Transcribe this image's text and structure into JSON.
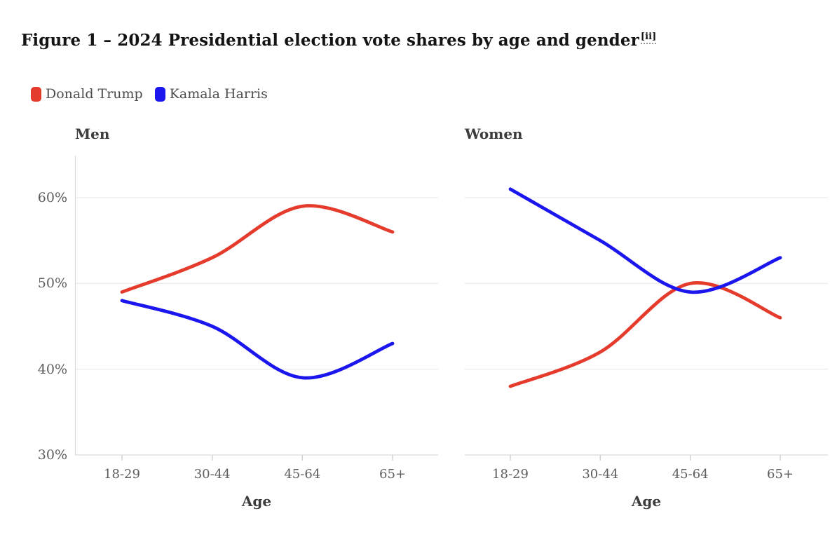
{
  "figure": {
    "title": "Figure 1 – 2024 Presidential election vote shares by age and gender",
    "footnote_marker": "[ii]"
  },
  "legend": {
    "position": "top-left",
    "items": [
      {
        "label": "Donald Trump",
        "color": "#e43b2c"
      },
      {
        "label": "Kamala Harris",
        "color": "#1b16ee"
      }
    ]
  },
  "colors": {
    "trump_red": "#e43b2c",
    "harris_blue": "#1b16ee",
    "gridline": "#ececec",
    "axis_line": "#d9d9d9",
    "tick_mark": "#d2d2d2"
  },
  "chart_data": [
    {
      "type": "line",
      "title": "Men",
      "xlabel": "Age",
      "ylabel": "",
      "x": [
        "18-29",
        "30-44",
        "45-64",
        "65+"
      ],
      "yticks": [
        "60%",
        "50%",
        "40%",
        "30%"
      ],
      "ylim": [
        30,
        63
      ],
      "grid": true,
      "series": [
        {
          "name": "Donald Trump",
          "color": "#e43b2c",
          "values": [
            49,
            53,
            59,
            56
          ]
        },
        {
          "name": "Kamala Harris",
          "color": "#1b16ee",
          "values": [
            48,
            45,
            39,
            43
          ]
        }
      ]
    },
    {
      "type": "line",
      "title": "Women",
      "xlabel": "Age",
      "ylabel": "",
      "x": [
        "18-29",
        "30-44",
        "45-64",
        "65+"
      ],
      "yticks": [
        "60%",
        "50%",
        "40%",
        "30%"
      ],
      "ylim": [
        30,
        63
      ],
      "grid": true,
      "series": [
        {
          "name": "Donald Trump",
          "color": "#e43b2c",
          "values": [
            38,
            42,
            50,
            46
          ]
        },
        {
          "name": "Kamala Harris",
          "color": "#1b16ee",
          "values": [
            61,
            55,
            49,
            53
          ]
        }
      ]
    }
  ]
}
